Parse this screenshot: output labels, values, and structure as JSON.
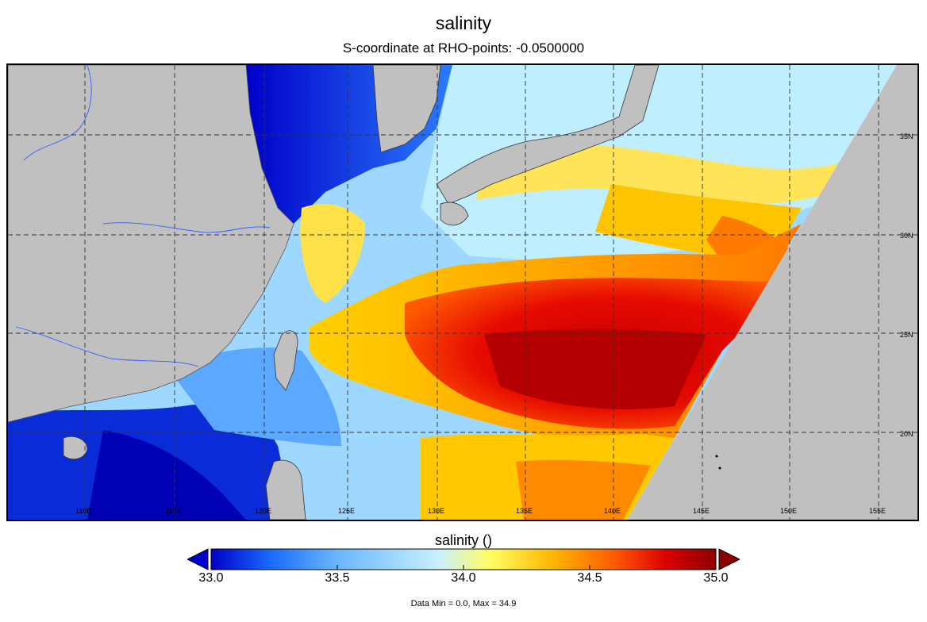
{
  "title": "salinity",
  "subtitle": "S-coordinate at RHO-points: -0.0500000",
  "map": {
    "lon_labels": [
      "110E",
      "115E",
      "120E",
      "125E",
      "130E",
      "135E",
      "140E",
      "145E",
      "150E",
      "155E"
    ],
    "lat_labels": [
      "35N",
      "30N",
      "25N",
      "20N"
    ],
    "land_color": "#c0c0c0",
    "gridlines": "dashed"
  },
  "colorbar": {
    "title": "salinity ()",
    "min": 33.0,
    "max": 35.0,
    "ticks": [
      "33.0",
      "33.5",
      "34.0",
      "34.5",
      "35.0"
    ],
    "colors": [
      "#0000c8",
      "#1a6cff",
      "#6ab6ff",
      "#c8f0ff",
      "#ffff66",
      "#ffb400",
      "#ff5a00",
      "#dc0000",
      "#8c0000"
    ],
    "extend": "both"
  },
  "footer": "Data Min = 0.0, Max = 34.9"
}
